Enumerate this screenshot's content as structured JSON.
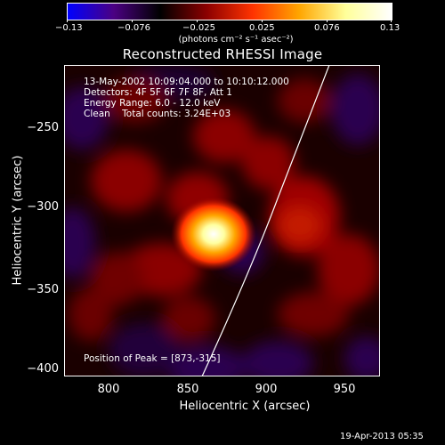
{
  "colorbar": {
    "labels": [
      "−0.13",
      "−0.076",
      "−0.025",
      "0.025",
      "0.076",
      "0.13"
    ],
    "units": "(photons cm⁻² s⁻¹ asec⁻²)",
    "gradient": [
      "#0000ff",
      "#4b0082",
      "#000000",
      "#8b0000",
      "#ff3300",
      "#ffa500",
      "#ffff99",
      "#ffffff"
    ]
  },
  "title": "Reconstructed RHESSI Image",
  "info": {
    "line1": "13-May-2002 10:09:04.000 to 10:10:12.000",
    "line2": "Detectors: 4F 5F 6F 7F 8F, Att 1",
    "line3": "Energy Range: 6.0 - 12.0 keV",
    "line4": "Clean    Total counts: 3.24E+03",
    "peak": "Position of Peak = [873,-315]"
  },
  "axes": {
    "x_label": "Heliocentric X (arcsec)",
    "y_label": "Heliocentric Y (arcsec)",
    "x_ticks": [
      "800",
      "850",
      "900",
      "950"
    ],
    "y_ticks": [
      "−250",
      "−300",
      "−350",
      "−400"
    ]
  },
  "footer": "19-Apr-2013 05:35"
}
